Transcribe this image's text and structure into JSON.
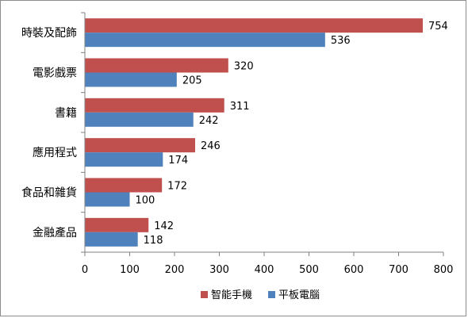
{
  "chart_data": {
    "type": "bar",
    "orientation": "horizontal",
    "categories": [
      "時裝及配飾",
      "電影戲票",
      "書籍",
      "應用程式",
      "食品和雜貨",
      "金融產品"
    ],
    "series": [
      {
        "name": "智能手機",
        "values": [
          754,
          320,
          311,
          246,
          172,
          142
        ],
        "color": "#c0504d"
      },
      {
        "name": "平板電腦",
        "values": [
          536,
          205,
          242,
          174,
          100,
          118
        ],
        "color": "#4f81bd"
      }
    ],
    "xlim": [
      0,
      800
    ],
    "xticks": [
      0,
      100,
      200,
      300,
      400,
      500,
      600,
      700,
      800
    ],
    "grid": false,
    "legend_position": "bottom",
    "data_labels": true
  }
}
